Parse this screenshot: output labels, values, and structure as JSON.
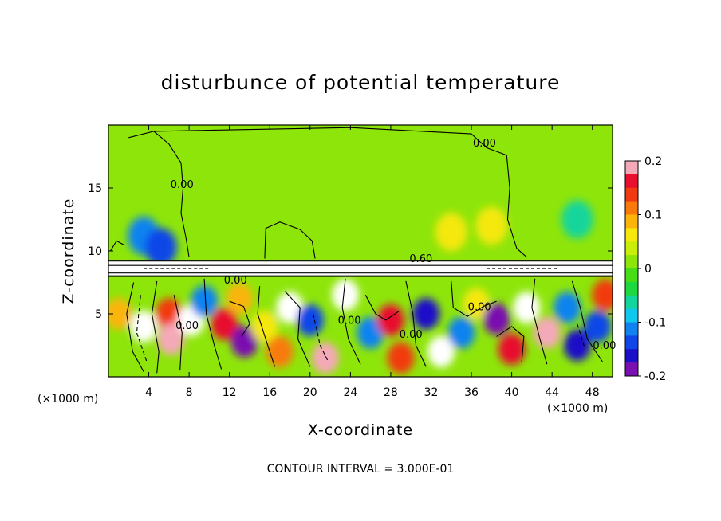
{
  "chart_data": {
    "type": "heatmap",
    "title": "disturbunce of potential temperature",
    "xlabel": "X-coordinate",
    "ylabel": "Z-coordinate",
    "x_unit": "(×1000 m)",
    "z_unit": "(×1000 m)",
    "xlim": [
      0,
      50
    ],
    "ylim": [
      0,
      20
    ],
    "x_ticks": [
      4,
      8,
      12,
      16,
      20,
      24,
      28,
      32,
      36,
      40,
      44,
      48
    ],
    "y_ticks": [
      5,
      10,
      15
    ],
    "colorbar": {
      "range": [
        -0.2,
        0.2
      ],
      "tick_values": [
        0.2,
        0.1,
        0,
        -0.1,
        -0.2
      ],
      "tick_labels": [
        "0.2",
        "0.1",
        "0",
        "-0.1",
        "-0.2"
      ],
      "colors": [
        "#f4a9b8",
        "#e8102e",
        "#f23a10",
        "#f97a0a",
        "#fbb50a",
        "#f5e80a",
        "#c8ee0a",
        "#8ee50a",
        "#49dd18",
        "#1ed83f",
        "#12d59b",
        "#10c8ee",
        "#1083f0",
        "#1046e8",
        "#1a10c8",
        "#7a10b0"
      ]
    },
    "contour_interval_text": "CONTOUR INTERVAL = 3.000E-01",
    "contour_labels": [
      {
        "text": "0.00",
        "x": 37.3,
        "z": 18.3
      },
      {
        "text": "0.00",
        "x": 7.3,
        "z": 15.0
      },
      {
        "text": "0.60",
        "x": 31.0,
        "z": 9.1
      },
      {
        "text": "0.00",
        "x": 12.6,
        "z": 7.4
      },
      {
        "text": "0.00",
        "x": 36.8,
        "z": 5.3
      },
      {
        "text": "0.00",
        "x": 7.8,
        "z": 3.8
      },
      {
        "text": "0.00",
        "x": 23.9,
        "z": 4.2
      },
      {
        "text": "0.00",
        "x": 30.0,
        "z": 3.1
      },
      {
        "text": "0.00",
        "x": 49.2,
        "z": 2.2
      }
    ],
    "background_value": 0.01,
    "inversion_layer_z": [
      8.0,
      9.2
    ],
    "anomalies": [
      {
        "x": 3.5,
        "z": 11.2,
        "value": -0.1
      },
      {
        "x": 5.2,
        "z": 10.3,
        "value": -0.15
      },
      {
        "x": 34.0,
        "z": 11.5,
        "value": 0.07
      },
      {
        "x": 38.0,
        "z": 12.0,
        "value": 0.06
      },
      {
        "x": 46.5,
        "z": 12.5,
        "value": -0.05
      },
      {
        "x": 1.0,
        "z": 5.0,
        "value": 0.1
      },
      {
        "x": 3.5,
        "z": 4.0,
        "value": 0.9
      },
      {
        "x": 6.0,
        "z": 5.0,
        "value": 0.15
      },
      {
        "x": 6.2,
        "z": 3.0,
        "value": 0.18
      },
      {
        "x": 8.2,
        "z": 4.5,
        "value": 0.9
      },
      {
        "x": 9.5,
        "z": 6.0,
        "value": -0.12
      },
      {
        "x": 11.5,
        "z": 4.2,
        "value": 0.17
      },
      {
        "x": 13.0,
        "z": 6.2,
        "value": 0.1
      },
      {
        "x": 13.5,
        "z": 2.8,
        "value": -0.18
      },
      {
        "x": 15.5,
        "z": 4.0,
        "value": 0.06
      },
      {
        "x": 17.0,
        "z": 2.0,
        "value": 0.12
      },
      {
        "x": 18.0,
        "z": 5.5,
        "value": 0.9
      },
      {
        "x": 20.0,
        "z": 4.5,
        "value": -0.15
      },
      {
        "x": 21.5,
        "z": 1.5,
        "value": 0.18
      },
      {
        "x": 23.5,
        "z": 6.5,
        "value": 0.9
      },
      {
        "x": 26.0,
        "z": 3.5,
        "value": -0.1
      },
      {
        "x": 28.0,
        "z": 4.5,
        "value": 0.16
      },
      {
        "x": 29.0,
        "z": 1.5,
        "value": 0.15
      },
      {
        "x": 31.5,
        "z": 5.0,
        "value": -0.17
      },
      {
        "x": 33.0,
        "z": 2.0,
        "value": 0.9
      },
      {
        "x": 35.0,
        "z": 3.5,
        "value": -0.12
      },
      {
        "x": 36.5,
        "z": 5.8,
        "value": 0.06
      },
      {
        "x": 38.5,
        "z": 4.6,
        "value": -0.19
      },
      {
        "x": 40.0,
        "z": 2.2,
        "value": 0.16
      },
      {
        "x": 41.5,
        "z": 5.5,
        "value": 0.9
      },
      {
        "x": 43.5,
        "z": 3.5,
        "value": 0.18
      },
      {
        "x": 45.5,
        "z": 5.5,
        "value": -0.1
      },
      {
        "x": 46.5,
        "z": 2.5,
        "value": -0.17
      },
      {
        "x": 48.5,
        "z": 4.0,
        "value": -0.14
      },
      {
        "x": 49.3,
        "z": 6.5,
        "value": 0.15
      }
    ]
  }
}
